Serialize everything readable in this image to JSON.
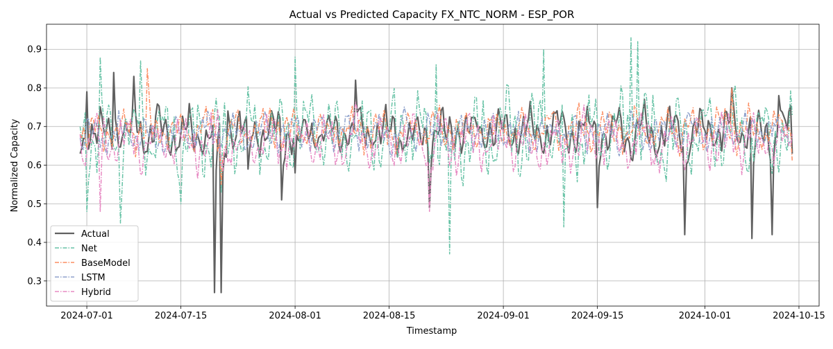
{
  "chart_data": {
    "type": "line",
    "title": "Actual vs Predicted Capacity FX_NTC_NORM - ESP_POR",
    "xlabel": "Timestamp",
    "ylabel": "Normalized Capacity",
    "x_range": [
      "2024-06-25",
      "2024-10-18"
    ],
    "ylim": [
      0.235,
      0.965
    ],
    "x_ticks": [
      "2024-07-01",
      "2024-07-15",
      "2024-08-01",
      "2024-08-15",
      "2024-09-01",
      "2024-09-15",
      "2024-10-01",
      "2024-10-15"
    ],
    "y_ticks": [
      0.3,
      0.4,
      0.5,
      0.6,
      0.7,
      0.8,
      0.9
    ],
    "grid": true,
    "legend_position": "lower-left",
    "x_start": "2024-06-30",
    "x_end": "2024-10-14",
    "sample_step_days": 0.25,
    "series": [
      {
        "name": "Actual",
        "color": "#606060",
        "dash": "solid",
        "mean": 0.685,
        "amplitude": 0.07,
        "noise": 0.03,
        "seed": 11,
        "anchors": [
          [
            "2024-06-30",
            0.63
          ],
          [
            "2024-07-01",
            0.79
          ],
          [
            "2024-07-05",
            0.84
          ],
          [
            "2024-07-08",
            0.83
          ],
          [
            "2024-07-20",
            0.27
          ],
          [
            "2024-07-21",
            0.27
          ],
          [
            "2024-07-22",
            0.74
          ],
          [
            "2024-07-25",
            0.59
          ],
          [
            "2024-07-30",
            0.51
          ],
          [
            "2024-08-01",
            0.58
          ],
          [
            "2024-08-10",
            0.82
          ],
          [
            "2024-08-21",
            0.49
          ],
          [
            "2024-09-15",
            0.49
          ],
          [
            "2024-09-28",
            0.42
          ],
          [
            "2024-10-05",
            0.8
          ],
          [
            "2024-10-08",
            0.41
          ],
          [
            "2024-10-11",
            0.42
          ],
          [
            "2024-10-12",
            0.78
          ],
          [
            "2024-10-14",
            0.63
          ]
        ]
      },
      {
        "name": "Net",
        "color": "#66c2a5",
        "dash": "dashdot",
        "mean": 0.68,
        "amplitude": 0.12,
        "noise": 0.05,
        "seed": 23,
        "anchors": [
          [
            "2024-06-30",
            0.7
          ],
          [
            "2024-07-01",
            0.48
          ],
          [
            "2024-07-03",
            0.88
          ],
          [
            "2024-07-06",
            0.45
          ],
          [
            "2024-07-09",
            0.87
          ],
          [
            "2024-07-15",
            0.5
          ],
          [
            "2024-07-21",
            0.53
          ],
          [
            "2024-08-01",
            0.88
          ],
          [
            "2024-08-24",
            0.37
          ],
          [
            "2024-08-22",
            0.86
          ],
          [
            "2024-09-07",
            0.9
          ],
          [
            "2024-09-10",
            0.44
          ],
          [
            "2024-09-20",
            0.93
          ],
          [
            "2024-09-21",
            0.92
          ],
          [
            "2024-10-14",
            0.73
          ]
        ]
      },
      {
        "name": "BaseModel",
        "color": "#fc8d62",
        "dash": "dashdot",
        "mean": 0.69,
        "amplitude": 0.06,
        "noise": 0.03,
        "seed": 37,
        "anchors": [
          [
            "2024-06-30",
            0.68
          ],
          [
            "2024-07-10",
            0.85
          ],
          [
            "2024-07-21",
            0.55
          ],
          [
            "2024-10-05",
            0.8
          ],
          [
            "2024-10-14",
            0.61
          ]
        ]
      },
      {
        "name": "LSTM",
        "color": "#8da0cb",
        "dash": "dashdot",
        "mean": 0.685,
        "amplitude": 0.05,
        "noise": 0.03,
        "seed": 53,
        "anchors": [
          [
            "2024-06-30",
            0.67
          ],
          [
            "2024-10-14",
            0.66
          ]
        ]
      },
      {
        "name": "Hybrid",
        "color": "#e78ac3",
        "dash": "dashdot",
        "mean": 0.66,
        "amplitude": 0.08,
        "noise": 0.04,
        "seed": 71,
        "anchors": [
          [
            "2024-06-30",
            0.68
          ],
          [
            "2024-07-03",
            0.48
          ],
          [
            "2024-08-21",
            0.48
          ],
          [
            "2024-10-14",
            0.68
          ]
        ]
      }
    ]
  }
}
